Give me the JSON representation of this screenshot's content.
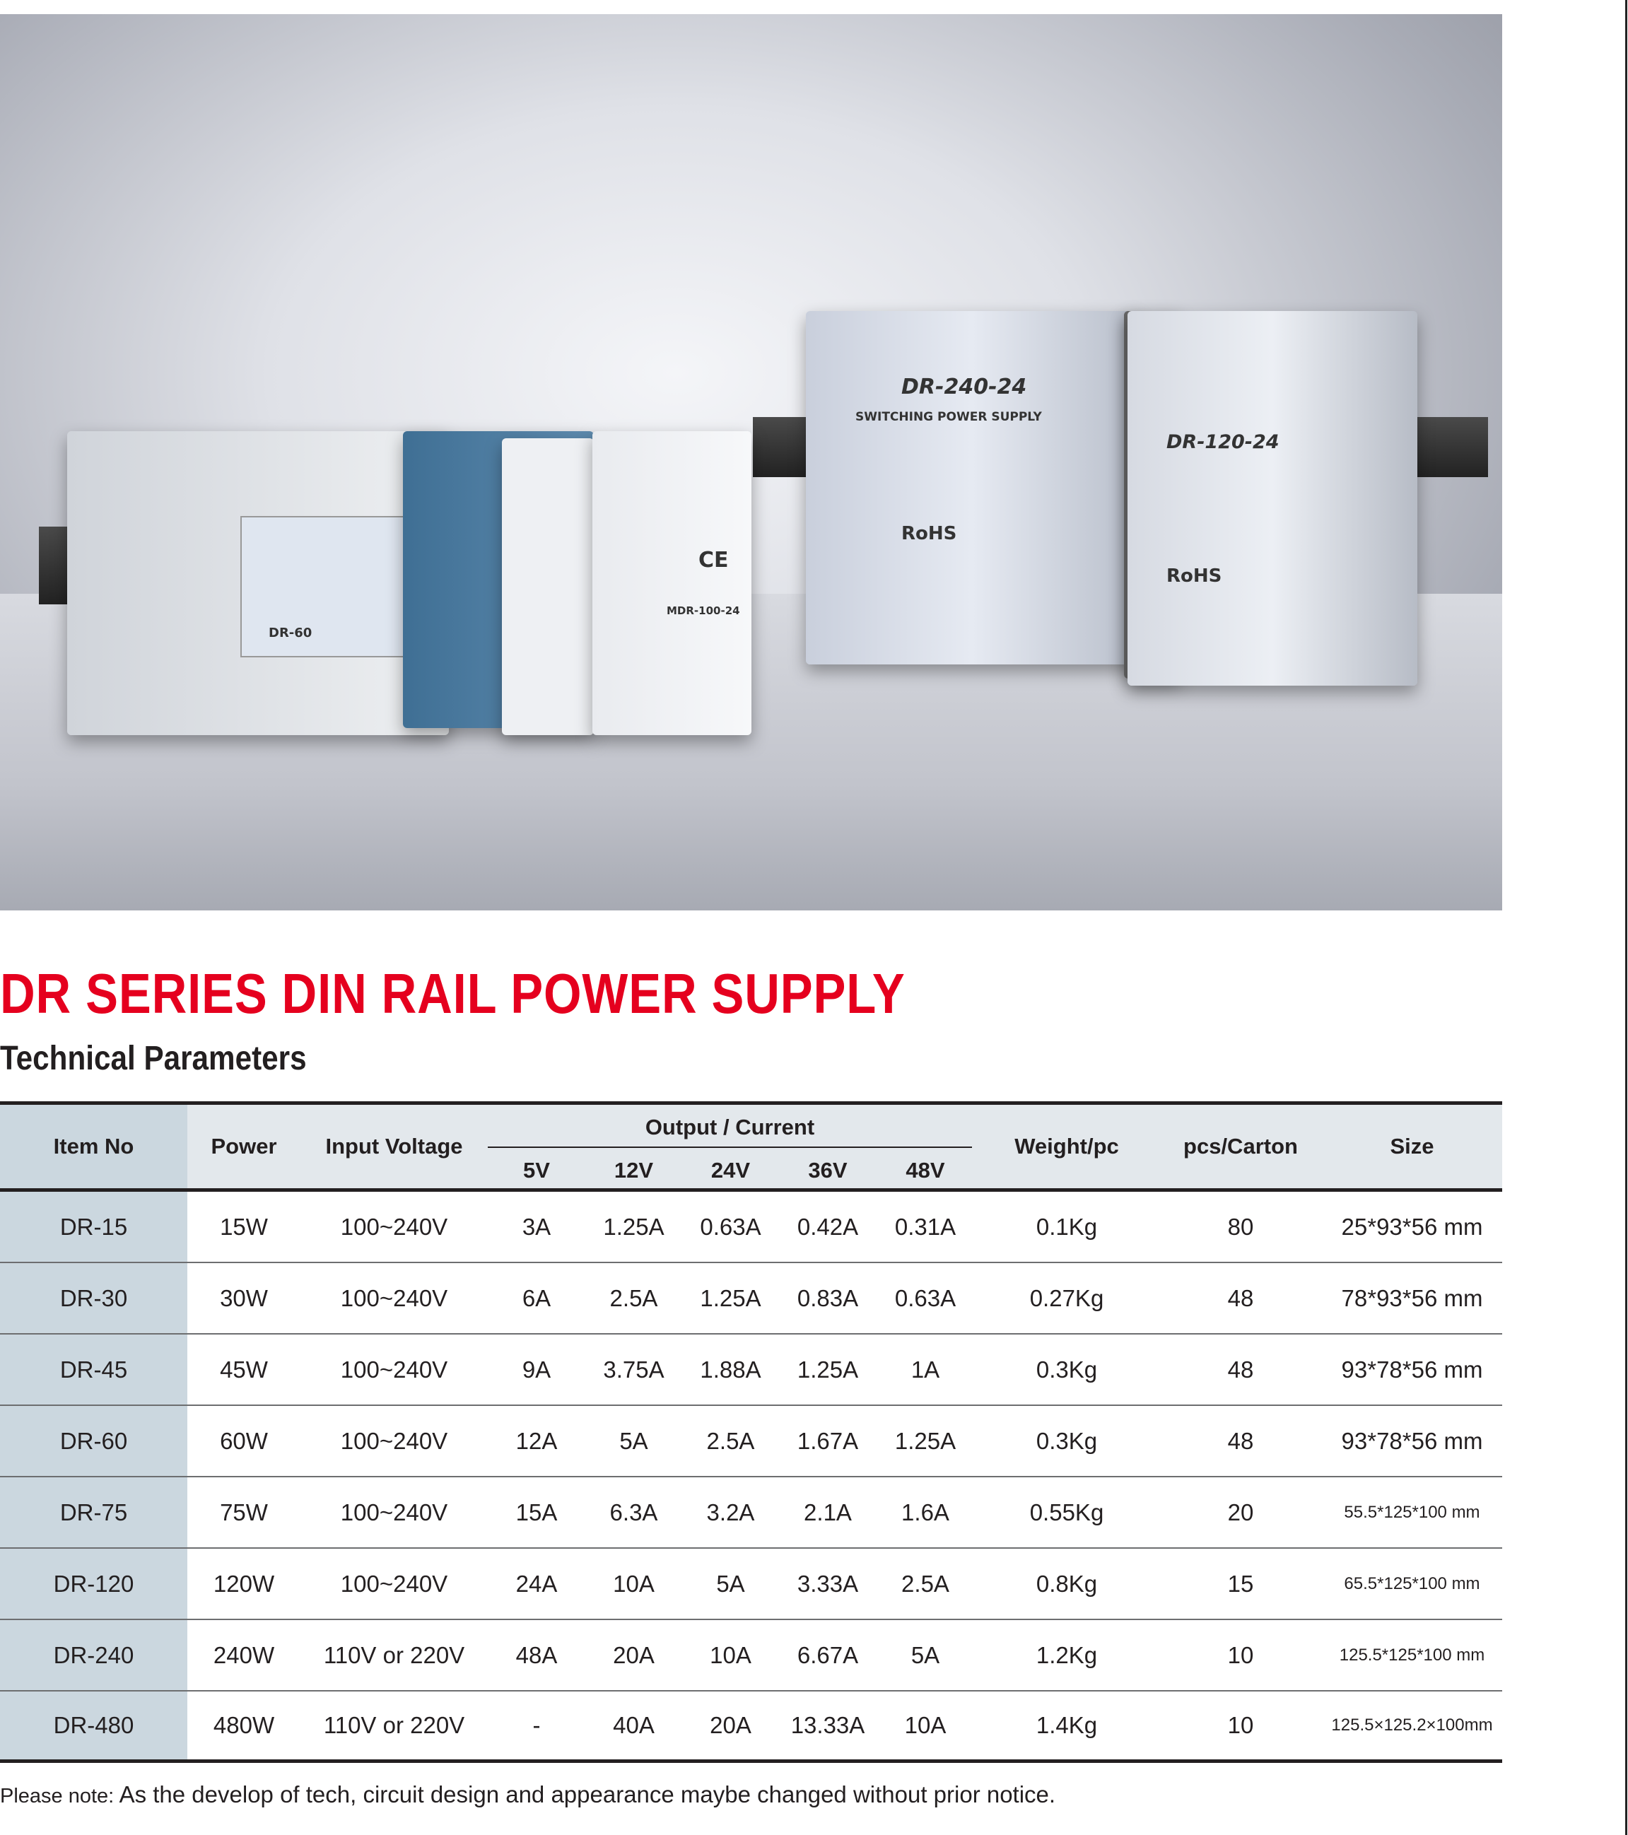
{
  "photo": {
    "labels": [
      "DR-240-24",
      "SWITCHING POWER SUPPLY",
      "DR-120-24",
      "DR-60",
      "MDR-100-24",
      "RoHS",
      "CE"
    ]
  },
  "title": "DR SERIES DIN RAIL POWER SUPPLY",
  "subtitle": "Technical Parameters",
  "table": {
    "headers": {
      "item": "Item No",
      "power": "Power",
      "input": "Input Voltage",
      "output_group": "Output / Current",
      "voltages": [
        "5V",
        "12V",
        "24V",
        "36V",
        "48V"
      ],
      "weight": "Weight/pc",
      "pcs": "pcs/Carton",
      "size": "Size"
    },
    "rows": [
      [
        "DR-15",
        "15W",
        "100~240V",
        "3A",
        "1.25A",
        "0.63A",
        "0.42A",
        "0.31A",
        "0.1Kg",
        "80",
        "25*93*56 mm"
      ],
      [
        "DR-30",
        "30W",
        "100~240V",
        "6A",
        "2.5A",
        "1.25A",
        "0.83A",
        "0.63A",
        "0.27Kg",
        "48",
        "78*93*56 mm"
      ],
      [
        "DR-45",
        "45W",
        "100~240V",
        "9A",
        "3.75A",
        "1.88A",
        "1.25A",
        "1A",
        "0.3Kg",
        "48",
        "93*78*56 mm"
      ],
      [
        "DR-60",
        "60W",
        "100~240V",
        "12A",
        "5A",
        "2.5A",
        "1.67A",
        "1.25A",
        "0.3Kg",
        "48",
        "93*78*56 mm"
      ],
      [
        "DR-75",
        "75W",
        "100~240V",
        "15A",
        "6.3A",
        "3.2A",
        "2.1A",
        "1.6A",
        "0.55Kg",
        "20",
        "55.5*125*100 mm"
      ],
      [
        "DR-120",
        "120W",
        "100~240V",
        "24A",
        "10A",
        "5A",
        "3.33A",
        "2.5A",
        "0.8Kg",
        "15",
        "65.5*125*100 mm"
      ],
      [
        "DR-240",
        "240W",
        "110V or 220V",
        "48A",
        "20A",
        "10A",
        "6.67A",
        "5A",
        "1.2Kg",
        "10",
        "125.5*125*100 mm"
      ],
      [
        "DR-480",
        "480W",
        "110V or 220V",
        "-",
        "40A",
        "20A",
        "13.33A",
        "10A",
        "1.4Kg",
        "10",
        "125.5×125.2×100mm"
      ]
    ]
  },
  "note": {
    "prefix": "Please note:",
    "text": " As the develop of tech, circuit design and appearance maybe changed without prior notice."
  }
}
